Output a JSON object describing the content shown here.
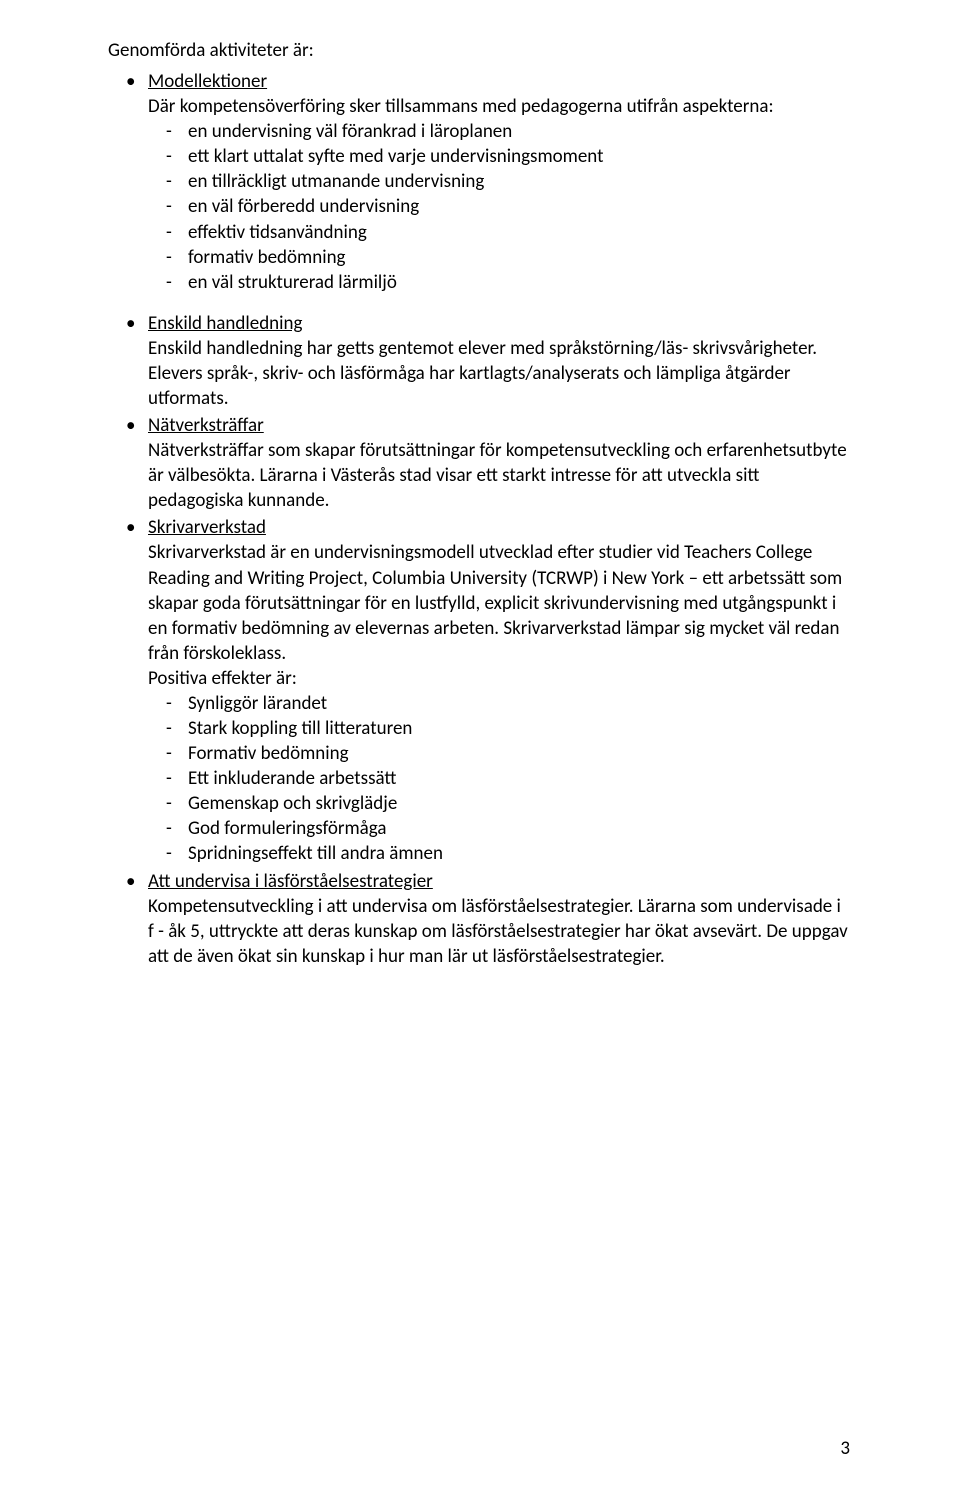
{
  "header": "Genomförda aktiviteter är:",
  "sections": [
    {
      "title": "Modellektioner",
      "intro": "Där kompetensöverföring sker tillsammans med pedagogerna utifrån aspekterna:",
      "dashes": [
        "en undervisning väl förankrad i läroplanen",
        "ett klart uttalat syfte med varje undervisningsmoment",
        "en tillräckligt utmanande undervisning",
        "en väl förberedd undervisning",
        "effektiv tidsanvändning",
        "formativ bedömning",
        "en väl strukturerad lärmiljö"
      ]
    },
    {
      "title": "Enskild handledning",
      "body": "Enskild handledning har getts gentemot elever med språkstörning/läs- skrivsvårigheter. Elevers språk-, skriv- och läsförmåga har kartlagts/analyserats och lämpliga åtgärder utformats."
    },
    {
      "title": "Nätverksträffar",
      "body": "Nätverksträffar som skapar förutsättningar för kompetensutveckling och erfarenhetsutbyte är välbesökta. Lärarna i Västerås stad visar ett starkt intresse för att utveckla sitt pedagogiska kunnande."
    },
    {
      "title": "Skrivarverkstad",
      "body": "Skrivarverkstad är en undervisningsmodell utvecklad efter studier vid Teachers College Reading and Writing Project, Columbia University (TCRWP) i New York – ett arbetssätt som skapar goda förutsättningar för en lustfylld, explicit skrivundervisning med utgångspunkt i en formativ bedömning av elevernas arbeten. Skrivarverkstad lämpar sig mycket väl redan från förskoleklass.",
      "sublabel": "Positiva effekter är:",
      "dashes": [
        "Synliggör lärandet",
        "Stark koppling till litteraturen",
        "Formativ bedömning",
        "Ett inkluderande arbetssätt",
        "Gemenskap och skrivglädje",
        "God formuleringsförmåga",
        "Spridningseffekt till andra ämnen"
      ]
    },
    {
      "title": "Att undervisa i läsförståelsestrategier",
      "body": "Kompetensutveckling i att undervisa om läsförståelsestrategier. Lärarna som undervisade i f - åk 5, uttryckte att deras kunskap om läsförståelsestrategier har ökat avsevärt.  De uppgav att de även ökat sin kunskap i hur man lär ut läsförståelsestrategier."
    }
  ],
  "page_number": "3"
}
